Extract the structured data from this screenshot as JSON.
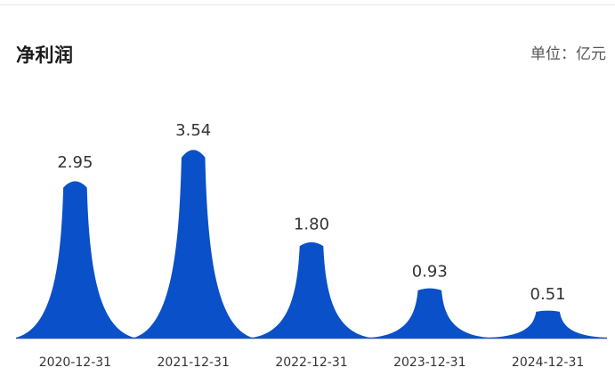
{
  "header": {
    "title": "净利润",
    "unit": "单位：亿元"
  },
  "colors": {
    "fill": "#0a50c8",
    "baseline": "#1f4fbf",
    "label_text": "#333333",
    "tick_text": "#333333"
  },
  "chart_data": {
    "type": "area",
    "categories": [
      "2020-12-31",
      "2021-12-31",
      "2022-12-31",
      "2023-12-31",
      "2024-12-31"
    ],
    "values": [
      2.95,
      3.54,
      1.8,
      0.93,
      0.51
    ],
    "value_labels": [
      "2.95",
      "3.54",
      "1.80",
      "0.93",
      "0.51"
    ],
    "title": "净利润",
    "unit": "单位：亿元",
    "ylim": [
      0,
      3.54
    ],
    "grid": false,
    "legend": "none"
  }
}
